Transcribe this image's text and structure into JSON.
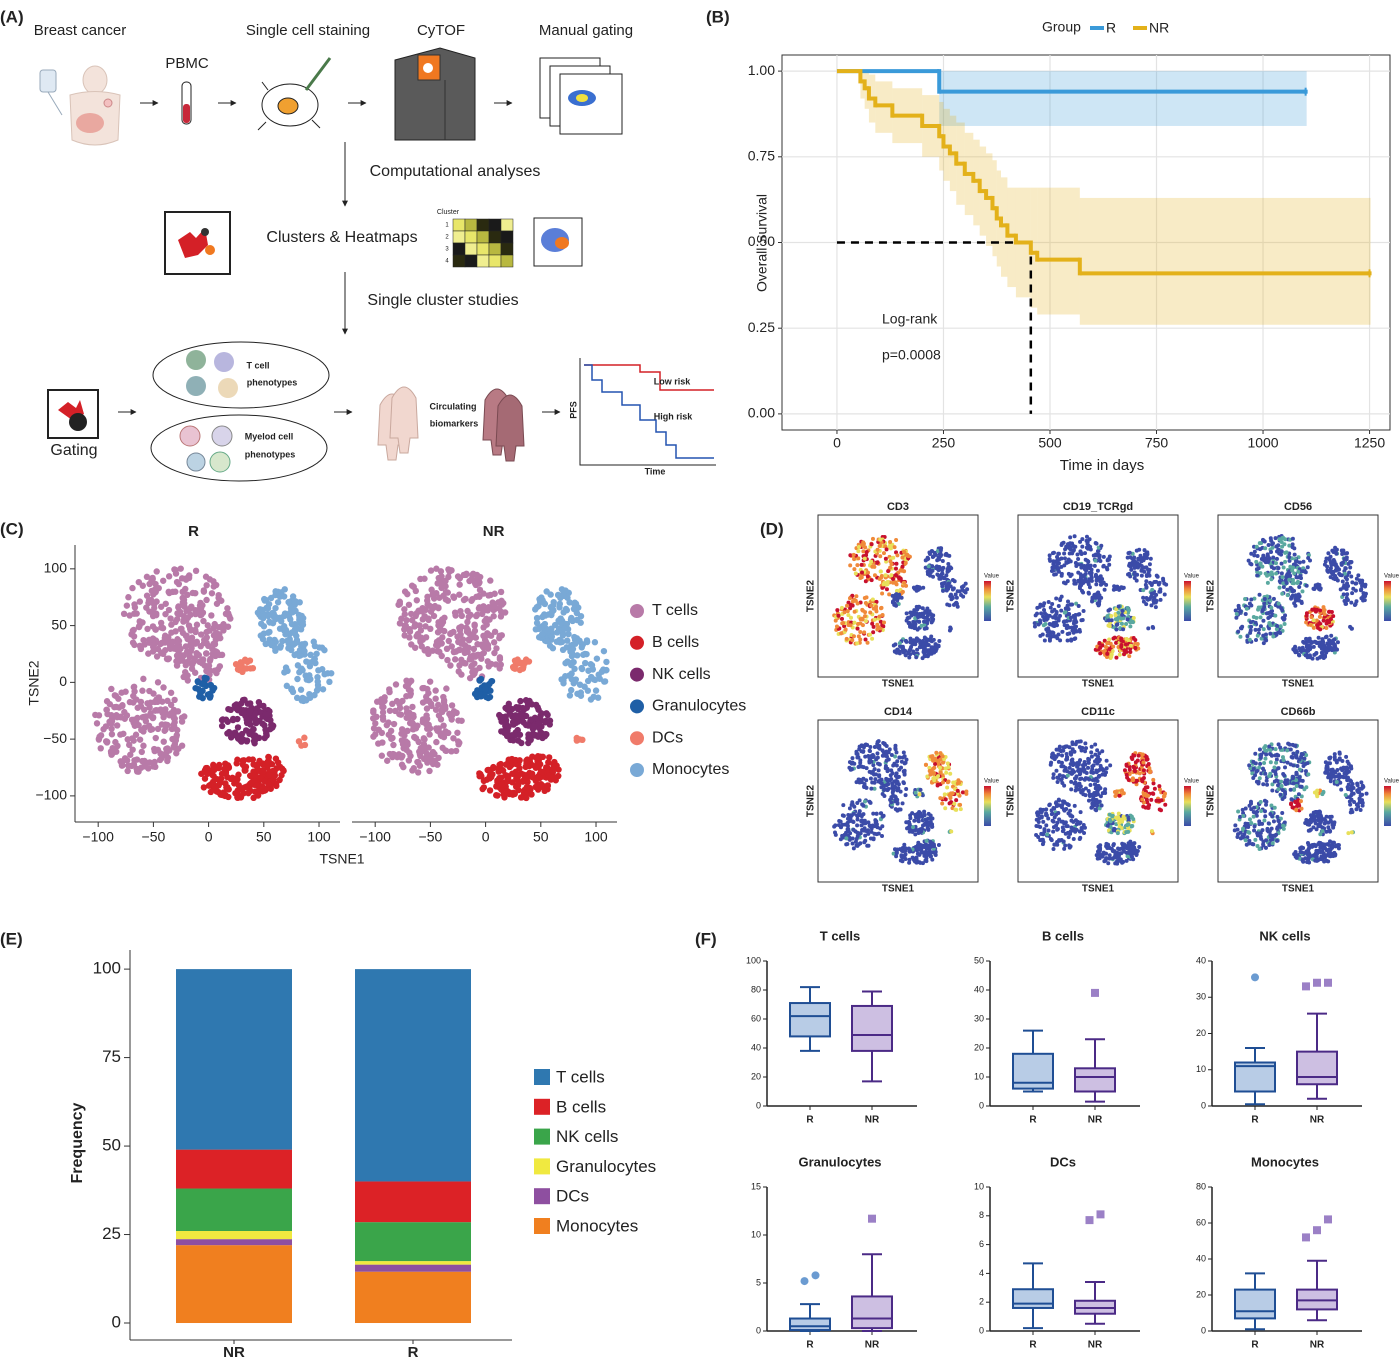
{
  "panel_labels": [
    "(A)",
    "(B)",
    "(C)",
    "(D)",
    "(E)",
    "(F)"
  ],
  "workflow": {
    "labels": [
      "Breast cancer",
      "PBMC",
      "Single cell staining",
      "CyTOF",
      "Manual gating",
      "Computational analyses",
      "Clusters & Heatmaps",
      "Cluster",
      "Single cluster studies",
      "T cell",
      "phenotypes",
      "Myelod cell",
      "phenotypes",
      "Circulating",
      "biomarkers",
      "PFS",
      "Low risk",
      "High risk",
      "Time",
      "Gating"
    ],
    "cluster_rows": [
      "1",
      "2",
      "3",
      "4"
    ]
  },
  "marker_maps": {
    "titles": [
      "CD3",
      "CD19_TCRgd",
      "CD56",
      "CD14",
      "CD11c",
      "CD66b"
    ],
    "xlabel": "TSNE1",
    "ylabel": "TSNE2",
    "colorbar_title": "Value"
  },
  "chart_data": [
    {
      "type": "line",
      "step": true,
      "legend_title": "Group",
      "legend": "top",
      "xlabel": "Time in days",
      "ylabel": "Overall Survival",
      "annotations": [
        "Log-rank",
        "p=0.0008"
      ],
      "grid": true,
      "xlim": [
        -129,
        1298
      ],
      "ylim": [
        -0.047,
        1.047
      ],
      "xticks": [
        0,
        250,
        500,
        750,
        1000,
        1250
      ],
      "yticks": [
        {
          "value": 0,
          "label": "0.00"
        },
        {
          "value": 0.25,
          "label": "0.25"
        },
        {
          "value": 0.5,
          "label": "0.50"
        },
        {
          "value": 0.75,
          "label": "0.75"
        },
        {
          "value": 1,
          "label": "1.00"
        }
      ],
      "median_line": {
        "y": 0.5,
        "x": 455
      },
      "series": [
        {
          "name": "R",
          "color": "#3a9ad9",
          "x": [
            0,
            240,
            1100
          ],
          "values": [
            1,
            0.94,
            0.94
          ],
          "ci_lower": [
            1,
            0.84,
            0.84
          ],
          "ci_upper": [
            1,
            1,
            1
          ]
        },
        {
          "name": "NR",
          "color": "#e3b11a",
          "x": [
            0,
            55,
            65,
            75,
            90,
            130,
            200,
            240,
            250,
            265,
            280,
            300,
            320,
            335,
            350,
            365,
            375,
            385,
            400,
            420,
            455,
            470,
            570,
            1250
          ],
          "values": [
            1,
            0.97,
            0.95,
            0.92,
            0.9,
            0.87,
            0.84,
            0.81,
            0.78,
            0.76,
            0.73,
            0.7,
            0.68,
            0.65,
            0.63,
            0.6,
            0.57,
            0.55,
            0.52,
            0.5,
            0.47,
            0.45,
            0.41,
            0.41
          ],
          "ci_lower": [
            1,
            0.92,
            0.89,
            0.85,
            0.82,
            0.79,
            0.75,
            0.71,
            0.68,
            0.65,
            0.61,
            0.58,
            0.55,
            0.52,
            0.49,
            0.46,
            0.43,
            0.4,
            0.37,
            0.34,
            0.31,
            0.29,
            0.26,
            0.26
          ],
          "ci_upper": [
            1,
            1,
            1,
            0.99,
            0.97,
            0.95,
            0.93,
            0.91,
            0.89,
            0.87,
            0.85,
            0.82,
            0.8,
            0.78,
            0.76,
            0.74,
            0.71,
            0.69,
            0.66,
            0.66,
            0.66,
            0.66,
            0.63,
            0.63
          ]
        }
      ]
    },
    {
      "type": "scatter",
      "titles": [
        "R",
        "NR"
      ],
      "xlabel": "TSNE1",
      "ylabel": "TSNE2",
      "xlim": [
        -121,
        119
      ],
      "ylim": [
        -123,
        121
      ],
      "xticks": [
        {
          "value": -100,
          "label": "−100"
        },
        {
          "value": -50,
          "label": "−50"
        },
        0,
        50,
        100
      ],
      "yticks": [
        {
          "value": -100,
          "label": "−100"
        },
        {
          "value": -50,
          "label": "−50"
        },
        0,
        50,
        100
      ],
      "series": [
        {
          "name": "T cells",
          "color": "#b87aa8"
        },
        {
          "name": "B cells",
          "color": "#d42027"
        },
        {
          "name": "NK cells",
          "color": "#7b2a6d"
        },
        {
          "name": "Granulocytes",
          "color": "#1f5fa6"
        },
        {
          "name": "DCs",
          "color": "#f07b6a"
        },
        {
          "name": "Monocytes",
          "color": "#79a9d6"
        }
      ]
    },
    {
      "type": "stacked_bar",
      "ylabel": "Frequency",
      "categories": [
        "NR",
        "R"
      ],
      "ylim": [
        -4.8,
        105.4
      ],
      "yticks": [
        0,
        25,
        50,
        75,
        100
      ],
      "series": [
        {
          "name": "T cells",
          "color": "#2f78b0",
          "values": [
            51,
            60
          ]
        },
        {
          "name": "B cells",
          "color": "#dc2226",
          "values": [
            11,
            11.5
          ]
        },
        {
          "name": "NK cells",
          "color": "#3aa54a",
          "values": [
            12,
            11
          ]
        },
        {
          "name": "Granulocytes",
          "color": "#f0e940",
          "values": [
            2.3,
            1
          ]
        },
        {
          "name": "DCs",
          "color": "#8e4fa0",
          "values": [
            1.7,
            2
          ]
        },
        {
          "name": "Monocytes",
          "color": "#f07f1f",
          "values": [
            22,
            14.5
          ]
        }
      ]
    },
    {
      "type": "box",
      "title": "T cells",
      "categories": [
        "R",
        "NR"
      ],
      "ylim": [
        0,
        100
      ],
      "yticks": [
        0,
        20,
        40,
        60,
        80,
        100
      ],
      "colors": [
        "#1f4e94",
        "#4b2a86"
      ],
      "fills": [
        "#b8cce6",
        "#cdbfe2"
      ],
      "boxes": [
        {
          "min": 38,
          "q1": 48,
          "median": 62,
          "q3": 71,
          "max": 82,
          "outliers": []
        },
        {
          "min": 17,
          "q1": 38,
          "median": 49,
          "q3": 69,
          "max": 79,
          "outliers": []
        }
      ]
    },
    {
      "type": "box",
      "title": "B cells",
      "categories": [
        "R",
        "NR"
      ],
      "ylim": [
        0,
        50
      ],
      "yticks": [
        0,
        10,
        20,
        30,
        40,
        50
      ],
      "colors": [
        "#1f4e94",
        "#4b2a86"
      ],
      "fills": [
        "#b8cce6",
        "#cdbfe2"
      ],
      "boxes": [
        {
          "min": 5,
          "q1": 6,
          "median": 8,
          "q3": 18,
          "max": 26,
          "outliers": []
        },
        {
          "min": 1.5,
          "q1": 5,
          "median": 10,
          "q3": 13,
          "max": 23,
          "outliers": [
            39
          ]
        }
      ]
    },
    {
      "type": "box",
      "title": "NK cells",
      "categories": [
        "R",
        "NR"
      ],
      "ylim": [
        0,
        40
      ],
      "yticks": [
        0,
        10,
        20,
        30,
        40
      ],
      "colors": [
        "#1f4e94",
        "#4b2a86"
      ],
      "fills": [
        "#b8cce6",
        "#cdbfe2"
      ],
      "boxes": [
        {
          "min": 0.5,
          "q1": 4,
          "median": 11,
          "q3": 12,
          "max": 16,
          "outliers": [
            35.5
          ]
        },
        {
          "min": 2,
          "q1": 6,
          "median": 8,
          "q3": 15,
          "max": 25.5,
          "outliers": [
            33,
            34,
            34
          ]
        }
      ]
    },
    {
      "type": "box",
      "title": "Granulocytes",
      "categories": [
        "R",
        "NR"
      ],
      "ylim": [
        0,
        15
      ],
      "yticks": [
        0,
        5,
        10,
        15
      ],
      "colors": [
        "#1f4e94",
        "#4b2a86"
      ],
      "fills": [
        "#b8cce6",
        "#cdbfe2"
      ],
      "boxes": [
        {
          "min": 0,
          "q1": 0.1,
          "median": 0.5,
          "q3": 1.3,
          "max": 2.8,
          "outliers": [
            5.2,
            5.8
          ]
        },
        {
          "min": 0,
          "q1": 0.3,
          "median": 1.3,
          "q3": 3.6,
          "max": 8,
          "outliers": [
            11.7
          ]
        }
      ]
    },
    {
      "type": "box",
      "title": "DCs",
      "categories": [
        "R",
        "NR"
      ],
      "ylim": [
        0,
        10
      ],
      "yticks": [
        0,
        2,
        4,
        6,
        8,
        10
      ],
      "colors": [
        "#1f4e94",
        "#4b2a86"
      ],
      "fills": [
        "#b8cce6",
        "#cdbfe2"
      ],
      "boxes": [
        {
          "min": 0.2,
          "q1": 1.6,
          "median": 1.9,
          "q3": 2.9,
          "max": 4.7,
          "outliers": []
        },
        {
          "min": 0.5,
          "q1": 1.2,
          "median": 1.6,
          "q3": 2.1,
          "max": 3.4,
          "outliers": [
            7.7,
            8.1
          ]
        }
      ]
    },
    {
      "type": "box",
      "title": "Monocytes",
      "categories": [
        "R",
        "NR"
      ],
      "ylim": [
        0,
        80
      ],
      "yticks": [
        0,
        20,
        40,
        60,
        80
      ],
      "colors": [
        "#1f4e94",
        "#4b2a86"
      ],
      "fills": [
        "#b8cce6",
        "#cdbfe2"
      ],
      "boxes": [
        {
          "min": 1,
          "q1": 7,
          "median": 11,
          "q3": 23,
          "max": 32,
          "outliers": []
        },
        {
          "min": 6,
          "q1": 12,
          "median": 17,
          "q3": 23,
          "max": 39,
          "outliers": [
            52,
            56,
            62
          ]
        }
      ]
    }
  ]
}
